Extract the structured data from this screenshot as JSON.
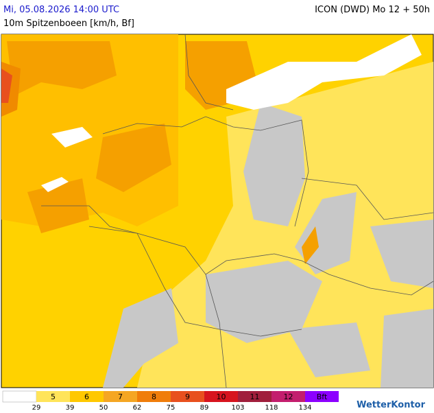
{
  "header": {
    "date": "Mi, 05.08.2026 14:00 UTC",
    "model": "ICON (DWD) Mo 12 + 50h",
    "subtitle": "10m Spitzenboeen [km/h, Bf]"
  },
  "legend": {
    "classes": [
      "5",
      "6",
      "7",
      "8",
      "9",
      "10",
      "11",
      "12",
      "Bft"
    ],
    "thresholds": [
      "29",
      "39",
      "50",
      "62",
      "75",
      "89",
      "103",
      "118",
      "134"
    ]
  },
  "brand": "WetterKontor"
}
